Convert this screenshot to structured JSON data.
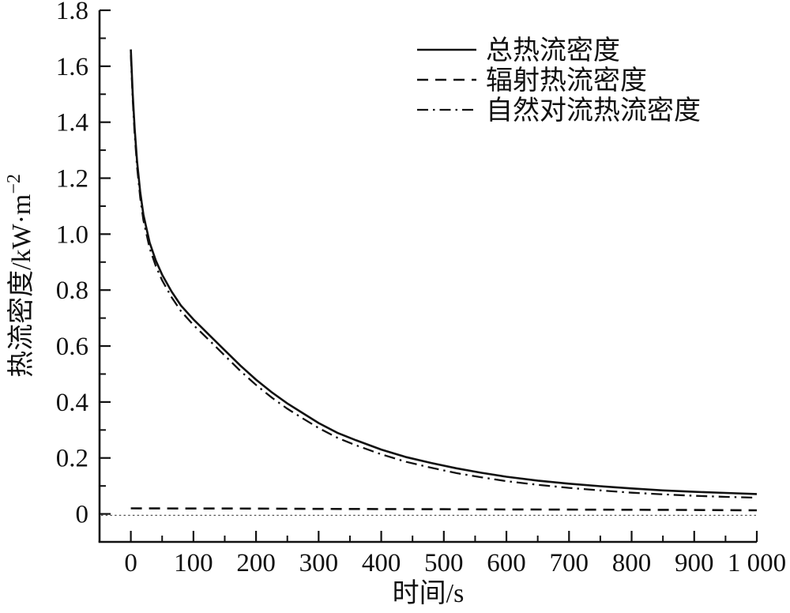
{
  "figure": {
    "background_color": "#ffffff",
    "line_color": "#111111",
    "reference_line_color": "#555555"
  },
  "chart_data": {
    "type": "line",
    "title": "",
    "xlabel": "时间/s",
    "ylabel": "热流密度/kW·m⁻²",
    "ylabel_base": "热流密度/kW·m",
    "ylabel_superscript": "−2",
    "xlim": [
      -50,
      1000
    ],
    "ylim": [
      -0.1,
      1.8
    ],
    "grid": "off",
    "legend_position": "inside upper right",
    "x_major_ticks": [
      {
        "v": 0,
        "label": "0"
      },
      {
        "v": 100,
        "label": "100"
      },
      {
        "v": 200,
        "label": "200"
      },
      {
        "v": 300,
        "label": "300"
      },
      {
        "v": 400,
        "label": "400"
      },
      {
        "v": 500,
        "label": "500"
      },
      {
        "v": 600,
        "label": "600"
      },
      {
        "v": 700,
        "label": "700"
      },
      {
        "v": 800,
        "label": "800"
      },
      {
        "v": 900,
        "label": "900"
      },
      {
        "v": 1000,
        "label": "1 000"
      }
    ],
    "x_minor_ticks": [
      50,
      150,
      250,
      350,
      450,
      550,
      650,
      750,
      850,
      950
    ],
    "y_major_ticks": [
      {
        "v": 0,
        "label": "0"
      },
      {
        "v": 0.2,
        "label": "0.2"
      },
      {
        "v": 0.4,
        "label": "0.4"
      },
      {
        "v": 0.6,
        "label": "0.6"
      },
      {
        "v": 0.8,
        "label": "0.8"
      },
      {
        "v": 1.0,
        "label": "1.0"
      },
      {
        "v": 1.2,
        "label": "1.2"
      },
      {
        "v": 1.4,
        "label": "1.4"
      },
      {
        "v": 1.6,
        "label": "1.6"
      },
      {
        "v": 1.8,
        "label": "1.8"
      }
    ],
    "y_minor_ticks": [
      0.1,
      0.3,
      0.5,
      0.7,
      0.9,
      1.1,
      1.3,
      1.5,
      1.7
    ],
    "reference_line": {
      "y": -0.005,
      "style": "dotted"
    },
    "series": [
      {
        "name": "总热流密度",
        "style": "solid",
        "points": [
          [
            0,
            1.66
          ],
          [
            3,
            1.5
          ],
          [
            6,
            1.38
          ],
          [
            10,
            1.26
          ],
          [
            15,
            1.15
          ],
          [
            20,
            1.07
          ],
          [
            30,
            0.97
          ],
          [
            40,
            0.905
          ],
          [
            50,
            0.855
          ],
          [
            65,
            0.795
          ],
          [
            80,
            0.745
          ],
          [
            100,
            0.695
          ],
          [
            125,
            0.64
          ],
          [
            150,
            0.585
          ],
          [
            175,
            0.53
          ],
          [
            200,
            0.48
          ],
          [
            225,
            0.435
          ],
          [
            250,
            0.395
          ],
          [
            275,
            0.36
          ],
          [
            300,
            0.325
          ],
          [
            330,
            0.29
          ],
          [
            360,
            0.263
          ],
          [
            400,
            0.23
          ],
          [
            440,
            0.203
          ],
          [
            480,
            0.182
          ],
          [
            520,
            0.163
          ],
          [
            560,
            0.147
          ],
          [
            600,
            0.133
          ],
          [
            650,
            0.119
          ],
          [
            700,
            0.108
          ],
          [
            750,
            0.099
          ],
          [
            800,
            0.091
          ],
          [
            850,
            0.084
          ],
          [
            900,
            0.079
          ],
          [
            950,
            0.075
          ],
          [
            1000,
            0.071
          ]
        ]
      },
      {
        "name": "辐射热流密度",
        "style": "dashed",
        "points": [
          [
            0,
            0.02
          ],
          [
            50,
            0.0198
          ],
          [
            100,
            0.0195
          ],
          [
            150,
            0.0193
          ],
          [
            200,
            0.019
          ],
          [
            300,
            0.018
          ],
          [
            400,
            0.0175
          ],
          [
            500,
            0.017
          ],
          [
            600,
            0.016
          ],
          [
            700,
            0.0155
          ],
          [
            800,
            0.015
          ],
          [
            900,
            0.014
          ],
          [
            1000,
            0.013
          ]
        ]
      },
      {
        "name": "自然对流热流密度",
        "style": "dashdot",
        "points": [
          [
            0,
            1.64
          ],
          [
            3,
            1.48
          ],
          [
            6,
            1.36
          ],
          [
            10,
            1.24
          ],
          [
            15,
            1.13
          ],
          [
            20,
            1.05
          ],
          [
            30,
            0.95
          ],
          [
            40,
            0.885
          ],
          [
            50,
            0.835
          ],
          [
            65,
            0.775
          ],
          [
            80,
            0.725
          ],
          [
            100,
            0.675
          ],
          [
            125,
            0.621
          ],
          [
            150,
            0.566
          ],
          [
            175,
            0.511
          ],
          [
            200,
            0.461
          ],
          [
            225,
            0.416
          ],
          [
            250,
            0.376
          ],
          [
            275,
            0.341
          ],
          [
            300,
            0.307
          ],
          [
            330,
            0.272
          ],
          [
            360,
            0.245
          ],
          [
            400,
            0.213
          ],
          [
            440,
            0.186
          ],
          [
            480,
            0.165
          ],
          [
            520,
            0.146
          ],
          [
            560,
            0.131
          ],
          [
            600,
            0.117
          ],
          [
            650,
            0.104
          ],
          [
            700,
            0.093
          ],
          [
            750,
            0.084
          ],
          [
            800,
            0.076
          ],
          [
            850,
            0.07
          ],
          [
            900,
            0.065
          ],
          [
            950,
            0.061
          ],
          [
            1000,
            0.058
          ]
        ]
      }
    ]
  }
}
